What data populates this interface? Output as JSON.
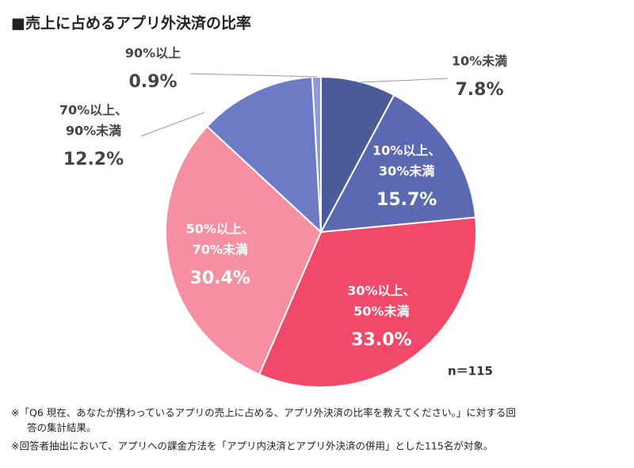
{
  "chart_data": {
    "type": "pie",
    "title": "■売上に占めるアプリ外決済の比率",
    "categories": [
      [
        "10%未満"
      ],
      [
        "10%以上、",
        "30%未満"
      ],
      [
        "30%以上、",
        "50%未満"
      ],
      [
        "50%以上、",
        "70%未満"
      ],
      [
        "70%以上、",
        "90%未満"
      ],
      [
        "90%以上"
      ]
    ],
    "values": [
      7.8,
      15.7,
      33.0,
      30.4,
      12.2,
      0.9
    ],
    "value_labels": [
      "7.8%",
      "15.7%",
      "33.0%",
      "30.4%",
      "12.2%",
      "0.9%"
    ],
    "colors": [
      "#4b5a98",
      "#5a69b2",
      "#f2496b",
      "#f68fa1",
      "#6b7bc6",
      "#8f9bd8"
    ],
    "annotation": "n＝115",
    "notes": [
      "※「Q6 現在、あなたが携わっているアプリの売上に占める、アプリ外決済の比率を教えてください。」に対する回",
      "答の集計結果。",
      "※回答者抽出において、アプリへの課金方法を「アプリ内決済とアプリ外決済の併用」とした115名が対象。"
    ]
  }
}
